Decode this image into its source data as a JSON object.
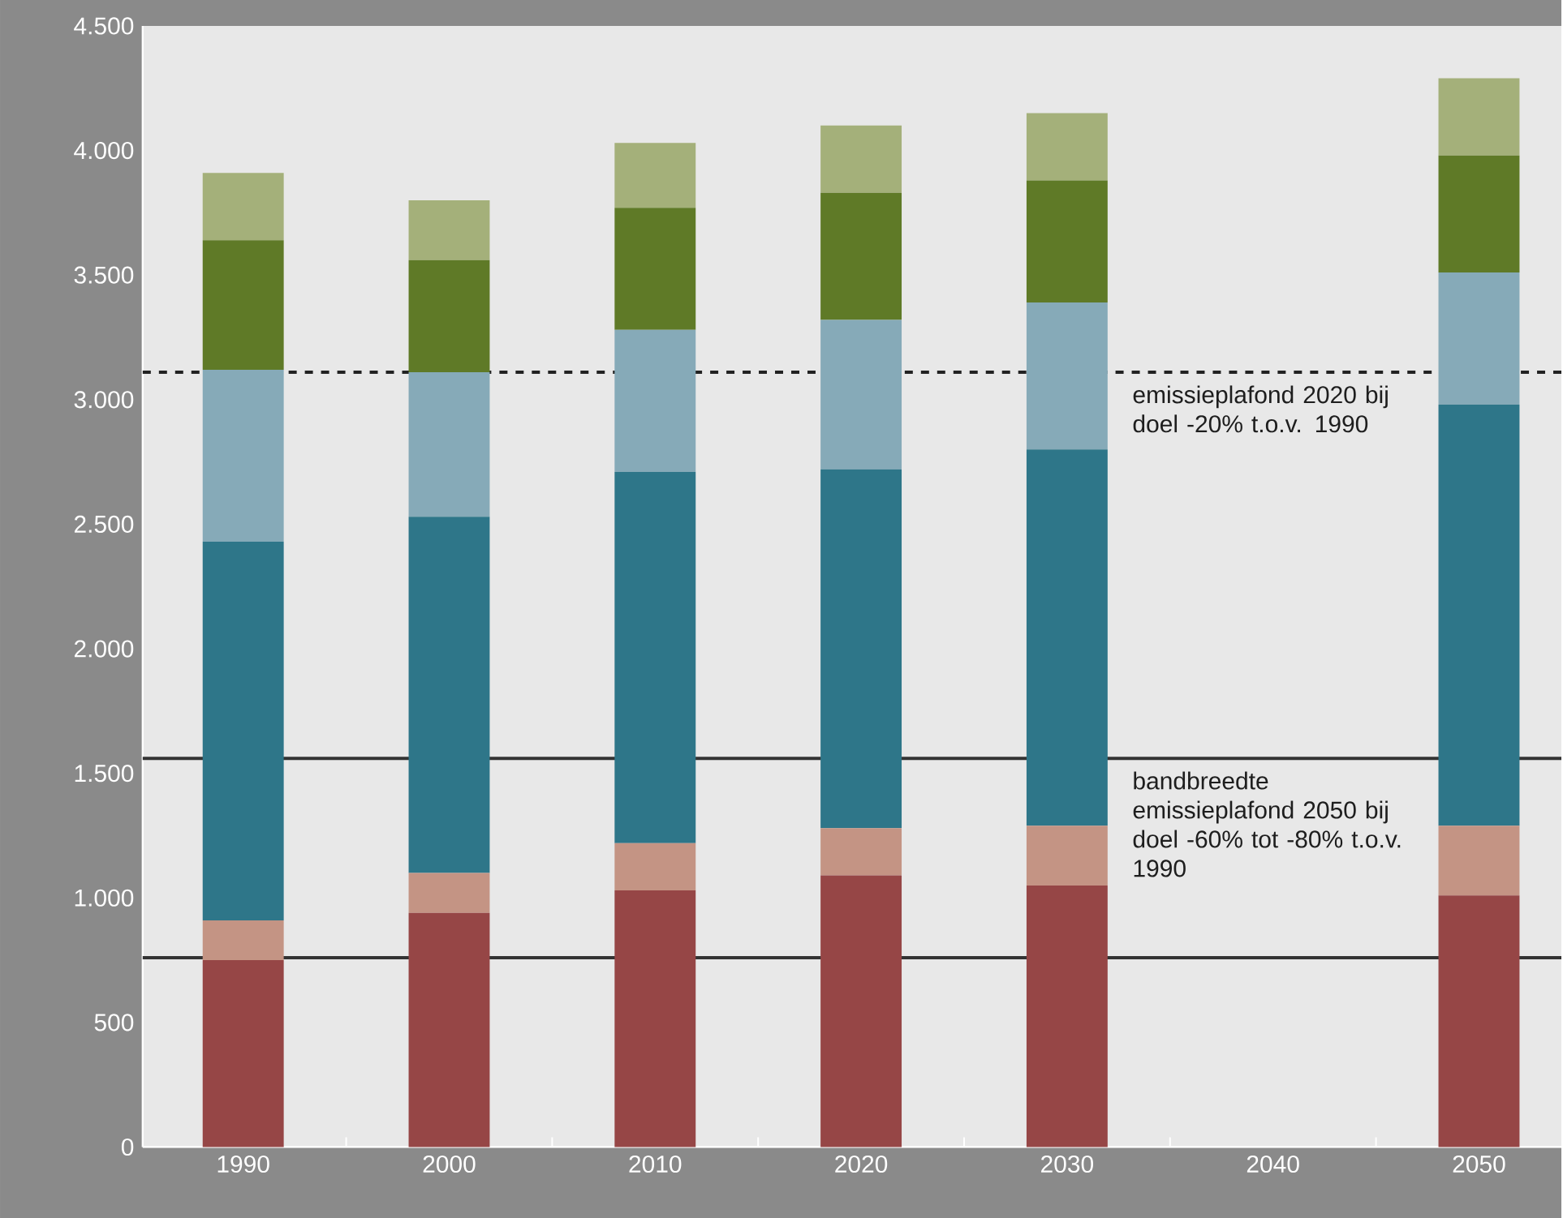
{
  "chart_data": {
    "type": "bar",
    "stacked": true,
    "categories": [
      "1990",
      "2000",
      "2010",
      "2020",
      "2030",
      "2040",
      "2050"
    ],
    "series": [
      {
        "color": "#964646",
        "values": [
          750,
          940,
          1030,
          1090,
          1050,
          null,
          1010
        ]
      },
      {
        "color": "#c49484",
        "values": [
          160,
          160,
          190,
          190,
          240,
          null,
          280
        ]
      },
      {
        "color": "#2e7689",
        "values": [
          1520,
          1430,
          1490,
          1440,
          1510,
          null,
          1690
        ]
      },
      {
        "color": "#86aab8",
        "values": [
          690,
          580,
          570,
          600,
          590,
          null,
          530
        ]
      },
      {
        "color": "#5f7a27",
        "values": [
          520,
          450,
          490,
          510,
          490,
          null,
          470
        ]
      },
      {
        "color": "#a4b07a",
        "values": [
          270,
          240,
          260,
          270,
          270,
          null,
          310
        ]
      }
    ],
    "ylim": [
      0,
      4500
    ],
    "yticks": [
      0,
      500,
      {
        "value": 1000,
        "label": "1.000"
      },
      {
        "value": 1500,
        "label": "1.500"
      },
      {
        "value": 2000,
        "label": "2.000"
      },
      {
        "value": 2500,
        "label": "2.500"
      },
      {
        "value": 3000,
        "label": "3.000"
      },
      {
        "value": 3500,
        "label": "3.500"
      },
      {
        "value": 4000,
        "label": "4.000"
      },
      {
        "value": 4500,
        "label": "4.500"
      }
    ],
    "ref_lines": [
      {
        "axis": "y",
        "value": 3110,
        "label": "emissieplafond 2020 bij doel -20% t.o.v. 1990",
        "color": "#222222",
        "line_style": "dashed"
      },
      {
        "axis": "y",
        "value": 1560,
        "label": "bandbreedte emissieplafond 2050 bij doel -60% tot -80% t.o.v. 1990",
        "color": "#333333",
        "line_style": "solid"
      },
      {
        "axis": "y",
        "value": 760,
        "color": "#333333",
        "line_style": "solid"
      }
    ],
    "grid": false
  }
}
